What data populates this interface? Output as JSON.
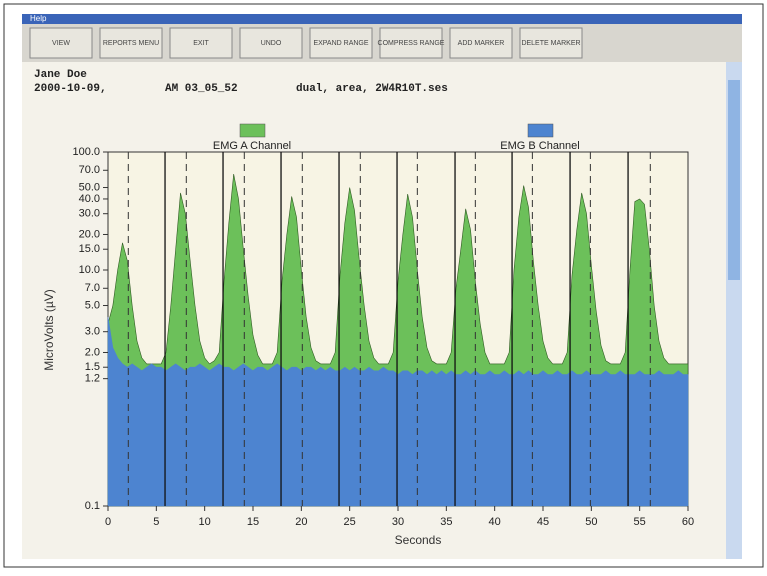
{
  "menu": "Help",
  "toolbar": [
    "VIEW",
    "REPORTS MENU",
    "EXIT",
    "UNDO",
    "EXPAND RANGE",
    "COMPRESS RANGE",
    "ADD MARKER",
    "DELETE MARKER"
  ],
  "header": {
    "name": "Jane Doe",
    "date": "2000-10-09,",
    "time": "AM 03_05_52",
    "file": "dual, area, 2W4R10T.ses"
  },
  "chart_data": {
    "type": "area",
    "ylabel": "MicroVolts (µV)",
    "xlabel": "Seconds",
    "log_scale": true,
    "ylim": [
      0.1,
      100
    ],
    "yticks": [
      {
        "value": 0.1,
        "label": "0.1"
      },
      {
        "value": 1.2,
        "label": "1.2"
      },
      {
        "value": 1.5,
        "label": "1.5"
      },
      {
        "value": 2,
        "label": "2.0"
      },
      {
        "value": 3,
        "label": "3.0"
      },
      {
        "value": 5,
        "label": "5.0"
      },
      {
        "value": 7,
        "label": "7.0"
      },
      {
        "value": 10,
        "label": "10.0"
      },
      {
        "value": 15,
        "label": "15.0"
      },
      {
        "value": 20,
        "label": "20.0"
      },
      {
        "value": 30,
        "label": "30.0"
      },
      {
        "value": 40,
        "label": "40.0"
      },
      {
        "value": 50,
        "label": "50.0"
      },
      {
        "value": 70,
        "label": "70.0"
      },
      {
        "value": 100,
        "label": "100.0"
      }
    ],
    "xlim": [
      0,
      60
    ],
    "xticks": [
      0,
      5,
      10,
      15,
      20,
      25,
      30,
      35,
      40,
      45,
      50,
      55,
      60
    ],
    "markers": [
      5.9,
      11.9,
      17.9,
      23.9,
      29.9,
      35.9,
      41.8,
      47.8,
      53.8
    ],
    "dashed_markers": [
      2.1,
      8.1,
      14.1,
      20.1,
      26.1,
      32,
      38,
      43.9,
      49.9,
      56.1
    ],
    "x": [
      0,
      0.5,
      1,
      1.5,
      2,
      2.5,
      3,
      3.5,
      4,
      4.5,
      5,
      5.5,
      6,
      6.5,
      7,
      7.5,
      8,
      8.5,
      9,
      9.5,
      10,
      10.5,
      11,
      11.5,
      12,
      12.5,
      13,
      13.5,
      14,
      14.5,
      15,
      15.5,
      16,
      16.5,
      17,
      17.5,
      18,
      18.5,
      19,
      19.5,
      20,
      20.5,
      21,
      21.5,
      22,
      22.5,
      23,
      23.5,
      24,
      24.5,
      25,
      25.5,
      26,
      26.5,
      27,
      27.5,
      28,
      28.5,
      29,
      29.5,
      30,
      30.5,
      31,
      31.5,
      32,
      32.5,
      33,
      33.5,
      34,
      34.5,
      35,
      35.5,
      36,
      36.5,
      37,
      37.5,
      38,
      38.5,
      39,
      39.5,
      40,
      40.5,
      41,
      41.5,
      42,
      42.5,
      43,
      43.5,
      44,
      44.5,
      45,
      45.5,
      46,
      46.5,
      47,
      47.5,
      48,
      48.5,
      49,
      49.5,
      50,
      50.5,
      51,
      51.5,
      52,
      52.5,
      53,
      53.5,
      54,
      54.5,
      55,
      55.5,
      56,
      56.5,
      57,
      57.5,
      58,
      58.5,
      59,
      59.5,
      60
    ],
    "series": [
      {
        "name": "EMG A Channel",
        "color": "#6cc05a",
        "values": [
          3.5,
          5,
          10,
          17,
          12,
          5,
          2.5,
          1.8,
          1.6,
          1.6,
          1.6,
          1.6,
          2,
          5,
          15,
          45,
          30,
          12,
          5,
          2.5,
          1.8,
          1.6,
          1.7,
          2,
          8,
          25,
          65,
          40,
          15,
          6,
          2.8,
          1.9,
          1.6,
          1.6,
          1.6,
          2,
          8,
          20,
          42,
          28,
          10,
          4,
          2.2,
          1.7,
          1.6,
          1.6,
          1.6,
          2,
          9,
          25,
          50,
          32,
          12,
          5,
          2.5,
          1.8,
          1.6,
          1.6,
          1.6,
          2,
          8,
          20,
          44,
          28,
          10,
          4,
          2.2,
          1.7,
          1.6,
          1.6,
          1.6,
          2,
          7,
          15,
          33,
          22,
          8,
          3.5,
          2,
          1.6,
          1.6,
          1.6,
          1.6,
          2,
          10,
          28,
          52,
          34,
          12,
          5,
          2.5,
          1.8,
          1.6,
          1.6,
          1.6,
          2,
          9,
          22,
          45,
          30,
          11,
          4.5,
          2.3,
          1.7,
          1.6,
          1.6,
          1.6,
          2,
          10,
          38,
          40,
          36,
          15,
          5,
          2.5,
          1.8,
          1.6,
          1.6,
          1.6,
          1.6,
          1.6
        ]
      },
      {
        "name": "EMG B Channel",
        "color": "#4d84d0",
        "values": [
          4,
          2.2,
          1.8,
          1.6,
          1.5,
          1.6,
          1.5,
          1.4,
          1.5,
          1.6,
          1.5,
          1.5,
          1.4,
          1.5,
          1.6,
          1.5,
          1.4,
          1.5,
          1.5,
          1.6,
          1.5,
          1.4,
          1.5,
          1.6,
          1.5,
          1.5,
          1.4,
          1.5,
          1.6,
          1.5,
          1.4,
          1.5,
          1.5,
          1.4,
          1.5,
          1.6,
          1.5,
          1.4,
          1.5,
          1.5,
          1.4,
          1.5,
          1.5,
          1.4,
          1.5,
          1.4,
          1.5,
          1.4,
          1.4,
          1.5,
          1.4,
          1.5,
          1.4,
          1.4,
          1.5,
          1.4,
          1.4,
          1.5,
          1.4,
          1.4,
          1.3,
          1.4,
          1.4,
          1.3,
          1.4,
          1.4,
          1.3,
          1.4,
          1.3,
          1.4,
          1.3,
          1.4,
          1.3,
          1.3,
          1.4,
          1.3,
          1.4,
          1.3,
          1.3,
          1.4,
          1.3,
          1.3,
          1.4,
          1.3,
          1.3,
          1.4,
          1.3,
          1.4,
          1.3,
          1.3,
          1.4,
          1.3,
          1.3,
          1.4,
          1.3,
          1.3,
          1.4,
          1.3,
          1.3,
          1.4,
          1.3,
          1.3,
          1.3,
          1.4,
          1.3,
          1.3,
          1.4,
          1.3,
          1.3,
          1.3,
          1.4,
          1.3,
          1.3,
          1.3,
          1.4,
          1.3,
          1.3,
          1.3,
          1.4,
          1.3,
          1.3
        ]
      }
    ]
  }
}
